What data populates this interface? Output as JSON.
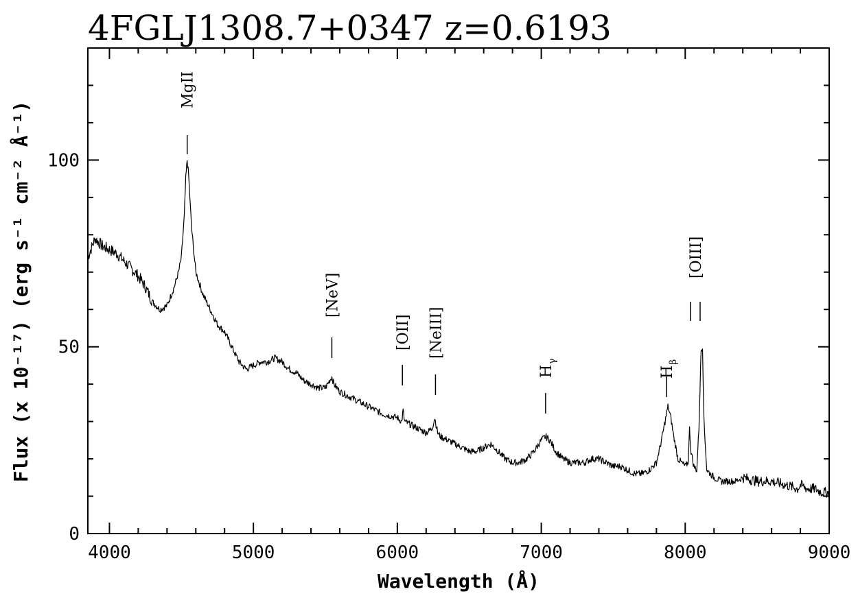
{
  "chart_data": {
    "type": "line",
    "title": "4FGLJ1308.7+0347 z=0.6193",
    "xlabel": "Wavelength (Å)",
    "ylabel": "Flux (x 10⁻¹⁷) (erg s⁻¹ cm⁻² Å⁻¹)",
    "xlim": [
      3850,
      9000
    ],
    "ylim": [
      0,
      130
    ],
    "x_ticks": [
      4000,
      5000,
      6000,
      7000,
      8000,
      9000
    ],
    "y_ticks": [
      0,
      50,
      100
    ],
    "grid": false,
    "series": [
      {
        "x": [
          3850,
          3900,
          3950,
          4000,
          4050,
          4100,
          4150,
          4200,
          4250,
          4300,
          4350,
          4400,
          4450,
          4480,
          4500,
          4520,
          4530,
          4540,
          4550,
          4570,
          4600,
          4650,
          4700,
          4750,
          4800,
          4850,
          4900,
          4950,
          5000,
          5050,
          5100,
          5150,
          5200,
          5250,
          5300,
          5350,
          5400,
          5450,
          5500,
          5530,
          5545,
          5560,
          5600,
          5650,
          5700,
          5800,
          5900,
          6000,
          6030,
          6040,
          6050,
          6100,
          6150,
          6200,
          6240,
          6260,
          6280,
          6300,
          6350,
          6400,
          6450,
          6500,
          6550,
          6600,
          6650,
          6700,
          6750,
          6800,
          6850,
          6900,
          6950,
          7000,
          7030,
          7060,
          7100,
          7150,
          7200,
          7250,
          7300,
          7350,
          7400,
          7450,
          7500,
          7550,
          7600,
          7650,
          7700,
          7750,
          7800,
          7830,
          7860,
          7880,
          7900,
          7920,
          7950,
          8000,
          8020,
          8030,
          8040,
          8060,
          8080,
          8095,
          8110,
          8120,
          8130,
          8150,
          8200,
          8250,
          8300,
          8350,
          8400,
          8500,
          8600,
          8700,
          8780,
          8800,
          8850,
          8900,
          8950,
          9000
        ],
        "y": [
          74,
          79,
          77,
          76,
          75,
          73,
          71,
          69,
          66,
          62,
          60,
          61,
          66,
          70,
          74,
          85,
          95,
          100,
          96,
          82,
          70,
          64,
          60,
          56,
          54,
          50,
          46,
          44,
          45,
          46,
          46,
          47,
          46,
          44,
          43,
          41,
          40,
          39,
          39,
          41,
          42,
          40,
          38,
          37,
          36,
          34,
          32,
          31,
          30,
          33,
          30,
          29,
          28,
          27,
          28,
          31,
          27,
          26,
          25,
          24,
          23,
          22,
          22,
          23,
          24,
          22,
          20,
          19,
          19,
          20,
          22,
          25,
          26,
          25,
          22,
          20,
          19,
          19,
          19,
          20,
          20,
          19,
          18,
          18,
          17,
          16,
          16,
          17,
          19,
          24,
          30,
          34,
          31,
          26,
          20,
          18,
          19,
          28,
          22,
          18,
          17,
          28,
          49,
          50,
          30,
          17,
          15,
          14,
          14,
          14,
          15,
          14,
          14,
          13,
          12,
          13,
          12,
          12,
          11,
          11
        ]
      }
    ],
    "annotations": [
      {
        "label": "MgII",
        "sub": "",
        "x": 4540
      },
      {
        "label": "[NeV]",
        "sub": "",
        "x": 5545
      },
      {
        "label": "[OII]",
        "sub": "",
        "x": 6035
      },
      {
        "label": "[NeIII]",
        "sub": "",
        "x": 6265
      },
      {
        "label": "H",
        "sub": "γ",
        "x": 7030
      },
      {
        "label": "H",
        "sub": "β",
        "x": 7870
      },
      {
        "label": "[OIII]",
        "sub": "",
        "x": 8070
      }
    ]
  }
}
